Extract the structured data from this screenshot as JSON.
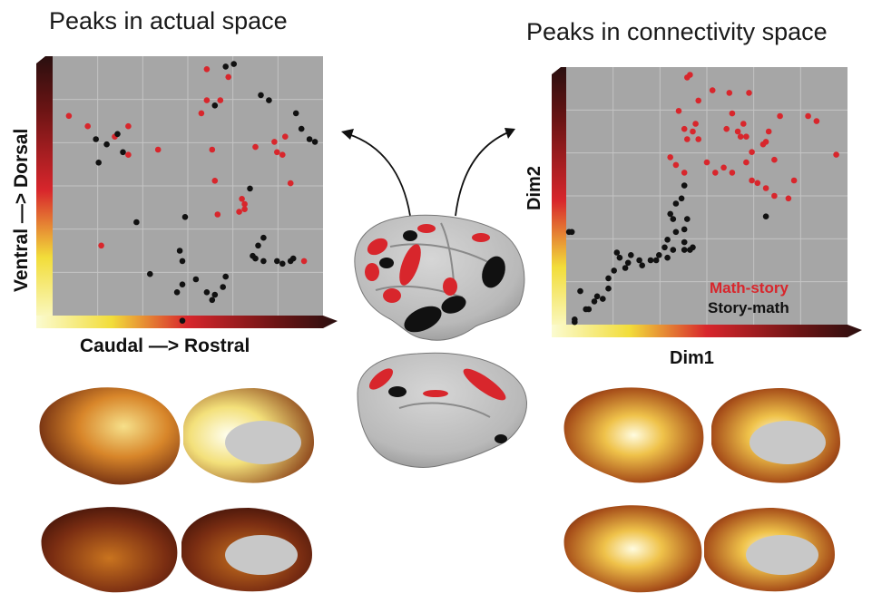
{
  "titles": {
    "left": "Peaks in actual space",
    "right": "Peaks in connectivity space"
  },
  "left_plot": {
    "xlabel": "Caudal —> Rostral",
    "ylabel": "Ventral —> Dorsal"
  },
  "right_plot": {
    "xlabel": "Dim1",
    "ylabel": "Dim2",
    "legend": [
      {
        "label": "Math-story",
        "color": "#d8262c"
      },
      {
        "label": "Story-math",
        "color": "#111111"
      }
    ]
  },
  "colors": {
    "red": "#d8262c",
    "black": "#111111",
    "panel": "#a6a6a6",
    "brain": "#c4c4c4"
  },
  "chart_data": [
    {
      "type": "scatter",
      "xlim": [
        0,
        1
      ],
      "ylim": [
        0,
        1
      ],
      "grid": true,
      "xlabel": "Caudal —> Rostral",
      "ylabel": "Ventral —> Dorsal",
      "series": [
        {
          "color": "#d8262c",
          "points": [
            [
              0.06,
              0.77
            ],
            [
              0.13,
              0.73
            ],
            [
              0.23,
              0.69
            ],
            [
              0.28,
              0.73
            ],
            [
              0.28,
              0.62
            ],
            [
              0.39,
              0.64
            ],
            [
              0.18,
              0.27
            ],
            [
              0.57,
              0.95
            ],
            [
              0.65,
              0.92
            ],
            [
              0.57,
              0.83
            ],
            [
              0.62,
              0.83
            ],
            [
              0.55,
              0.78
            ],
            [
              0.59,
              0.64
            ],
            [
              0.6,
              0.52
            ],
            [
              0.61,
              0.39
            ],
            [
              0.69,
              0.4
            ],
            [
              0.71,
              0.43
            ],
            [
              0.7,
              0.45
            ],
            [
              0.71,
              0.41
            ],
            [
              0.75,
              0.65
            ],
            [
              0.82,
              0.67
            ],
            [
              0.83,
              0.63
            ],
            [
              0.85,
              0.62
            ],
            [
              0.86,
              0.69
            ],
            [
              0.88,
              0.51
            ],
            [
              0.93,
              0.21
            ]
          ]
        },
        {
          "color": "#111111",
          "points": [
            [
              0.16,
              0.68
            ],
            [
              0.2,
              0.66
            ],
            [
              0.24,
              0.7
            ],
            [
              0.26,
              0.63
            ],
            [
              0.17,
              0.59
            ],
            [
              0.31,
              0.36
            ],
            [
              0.36,
              0.16
            ],
            [
              0.49,
              0.38
            ],
            [
              0.47,
              0.25
            ],
            [
              0.48,
              0.21
            ],
            [
              0.48,
              0.12
            ],
            [
              0.46,
              0.09
            ],
            [
              0.53,
              0.14
            ],
            [
              0.57,
              0.09
            ],
            [
              0.6,
              0.08
            ],
            [
              0.59,
              0.06
            ],
            [
              0.64,
              0.15
            ],
            [
              0.63,
              0.11
            ],
            [
              0.6,
              0.81
            ],
            [
              0.67,
              0.97
            ],
            [
              0.64,
              0.96
            ],
            [
              0.77,
              0.85
            ],
            [
              0.8,
              0.83
            ],
            [
              0.73,
              0.49
            ],
            [
              0.78,
              0.3
            ],
            [
              0.76,
              0.27
            ],
            [
              0.74,
              0.23
            ],
            [
              0.75,
              0.22
            ],
            [
              0.78,
              0.21
            ],
            [
              0.83,
              0.21
            ],
            [
              0.85,
              0.2
            ],
            [
              0.88,
              0.21
            ],
            [
              0.89,
              0.22
            ],
            [
              0.9,
              0.78
            ],
            [
              0.92,
              0.72
            ],
            [
              0.95,
              0.68
            ],
            [
              0.97,
              0.67
            ],
            [
              0.48,
              -0.02
            ]
          ]
        }
      ]
    },
    {
      "type": "scatter",
      "xlim": [
        0,
        1
      ],
      "ylim": [
        0,
        1
      ],
      "grid": true,
      "xlabel": "Dim1",
      "ylabel": "Dim2",
      "series": [
        {
          "name": "Math-story",
          "color": "#d8262c",
          "points": [
            [
              0.43,
              0.96
            ],
            [
              0.44,
              0.97
            ],
            [
              0.47,
              0.87
            ],
            [
              0.52,
              0.91
            ],
            [
              0.58,
              0.9
            ],
            [
              0.65,
              0.9
            ],
            [
              0.4,
              0.83
            ],
            [
              0.42,
              0.76
            ],
            [
              0.45,
              0.75
            ],
            [
              0.47,
              0.72
            ],
            [
              0.43,
              0.72
            ],
            [
              0.46,
              0.78
            ],
            [
              0.59,
              0.82
            ],
            [
              0.61,
              0.75
            ],
            [
              0.62,
              0.73
            ],
            [
              0.64,
              0.73
            ],
            [
              0.63,
              0.78
            ],
            [
              0.57,
              0.76
            ],
            [
              0.66,
              0.67
            ],
            [
              0.72,
              0.75
            ],
            [
              0.76,
              0.81
            ],
            [
              0.71,
              0.71
            ],
            [
              0.7,
              0.7
            ],
            [
              0.74,
              0.64
            ],
            [
              0.37,
              0.65
            ],
            [
              0.39,
              0.62
            ],
            [
              0.42,
              0.59
            ],
            [
              0.5,
              0.63
            ],
            [
              0.53,
              0.59
            ],
            [
              0.56,
              0.61
            ],
            [
              0.59,
              0.59
            ],
            [
              0.64,
              0.63
            ],
            [
              0.66,
              0.56
            ],
            [
              0.68,
              0.55
            ],
            [
              0.71,
              0.53
            ],
            [
              0.74,
              0.5
            ],
            [
              0.79,
              0.49
            ],
            [
              0.81,
              0.56
            ],
            [
              0.86,
              0.81
            ],
            [
              0.89,
              0.79
            ],
            [
              0.96,
              0.66
            ]
          ]
        },
        {
          "name": "Story-math",
          "color": "#111111",
          "points": [
            [
              0.42,
              0.54
            ],
            [
              0.41,
              0.49
            ],
            [
              0.39,
              0.47
            ],
            [
              0.37,
              0.43
            ],
            [
              0.38,
              0.41
            ],
            [
              0.39,
              0.36
            ],
            [
              0.36,
              0.33
            ],
            [
              0.35,
              0.3
            ],
            [
              0.38,
              0.29
            ],
            [
              0.36,
              0.26
            ],
            [
              0.32,
              0.25
            ],
            [
              0.3,
              0.25
            ],
            [
              0.43,
              0.41
            ],
            [
              0.42,
              0.37
            ],
            [
              0.42,
              0.32
            ],
            [
              0.42,
              0.29
            ],
            [
              0.44,
              0.29
            ],
            [
              0.45,
              0.3
            ],
            [
              0.33,
              0.27
            ],
            [
              0.27,
              0.23
            ],
            [
              0.26,
              0.25
            ],
            [
              0.23,
              0.27
            ],
            [
              0.22,
              0.24
            ],
            [
              0.21,
              0.22
            ],
            [
              0.19,
              0.26
            ],
            [
              0.18,
              0.28
            ],
            [
              0.17,
              0.21
            ],
            [
              0.15,
              0.18
            ],
            [
              0.15,
              0.14
            ],
            [
              0.13,
              0.1
            ],
            [
              0.11,
              0.11
            ],
            [
              0.1,
              0.09
            ],
            [
              0.08,
              0.06
            ],
            [
              0.07,
              0.06
            ],
            [
              0.05,
              0.13
            ],
            [
              0.03,
              0.02
            ],
            [
              0.02,
              0.36
            ],
            [
              0.01,
              0.36
            ],
            [
              0.71,
              0.42
            ],
            [
              0.03,
              0.01
            ]
          ]
        }
      ]
    }
  ]
}
